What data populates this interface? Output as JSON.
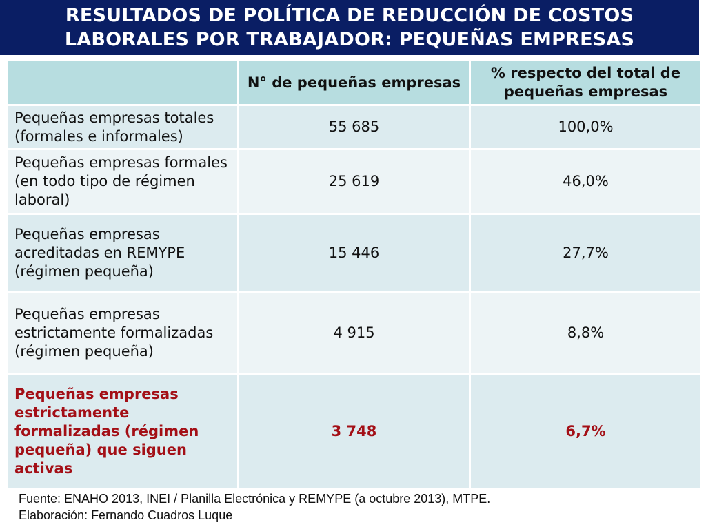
{
  "title": {
    "line1": "RESULTADOS DE POLÍTICA DE REDUCCIÓN DE COSTOS",
    "line2": "LABORALES POR TRABAJADOR: PEQUEÑAS EMPRESAS"
  },
  "table": {
    "headers": [
      "",
      "N° de pequeñas empresas",
      "% respecto del total de pequeñas empresas"
    ],
    "rows": [
      {
        "label": "Pequeñas empresas totales (formales e informales)",
        "count": "55 685",
        "percent": "100,0%"
      },
      {
        "label": "Pequeñas empresas formales (en todo tipo de régimen laboral)",
        "count": "25 619",
        "percent": "46,0%"
      },
      {
        "label": "Pequeñas empresas acreditadas en REMYPE (régimen pequeña)",
        "count": "15 446",
        "percent": "27,7%"
      },
      {
        "label": "Pequeñas empresas estrictamente formalizadas (régimen pequeña)",
        "count": "4 915",
        "percent": "8,8%"
      },
      {
        "label": "Pequeñas empresas estrictamente formalizadas (régimen pequeña) que siguen activas",
        "count": "3 748",
        "percent": "6,7%"
      }
    ]
  },
  "footer": {
    "source": "Fuente: ENAHO 2013, INEI / Planilla Electrónica y REMYPE (a octubre 2013), MTPE.",
    "author": "Elaboración: Fernando Cuadros Luque"
  },
  "colors": {
    "title_bg": "#0a1e64",
    "header_bg": "#b7dde0",
    "highlight_text": "#a30f16"
  }
}
